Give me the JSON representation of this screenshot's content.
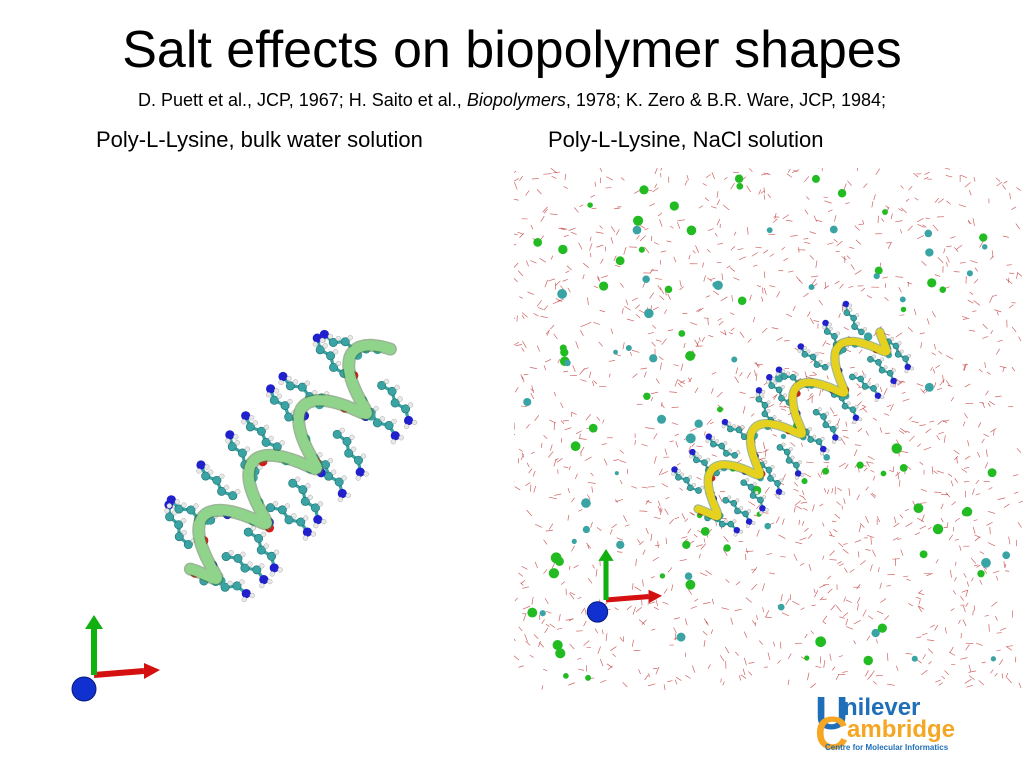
{
  "slide": {
    "title": "Salt effects on biopolymer shapes",
    "citation_part1": "D. Puett et al., JCP, 1967; H. Saito et al., ",
    "citation_journal": "Biopolymers",
    "citation_part2": ", 1978; K. Zero & B.R. Ware, JCP, 1984;"
  },
  "panels": {
    "left_caption": "Poly-L-Lysine, bulk water solution",
    "right_caption": "Poly-L-Lysine, NaCl solution"
  },
  "logo": {
    "letter_u": "U",
    "word_unilever": "nilever",
    "letter_c": "C",
    "word_cambridge": "ambridge",
    "subtitle": "Centre for Molecular Informatics"
  },
  "colors": {
    "helix_left": "#8fd48a",
    "helix_right": "#e6d21e",
    "carbon": "#3aa3a3",
    "oxygen": "#d61a1a",
    "nitrogen": "#2020cc",
    "hydrogen": "#e8e8e8",
    "chloride": "#22bb22",
    "water": "#c03030",
    "axis_x": "#d41010",
    "axis_y": "#10b010",
    "axis_z": "#1030d0"
  }
}
